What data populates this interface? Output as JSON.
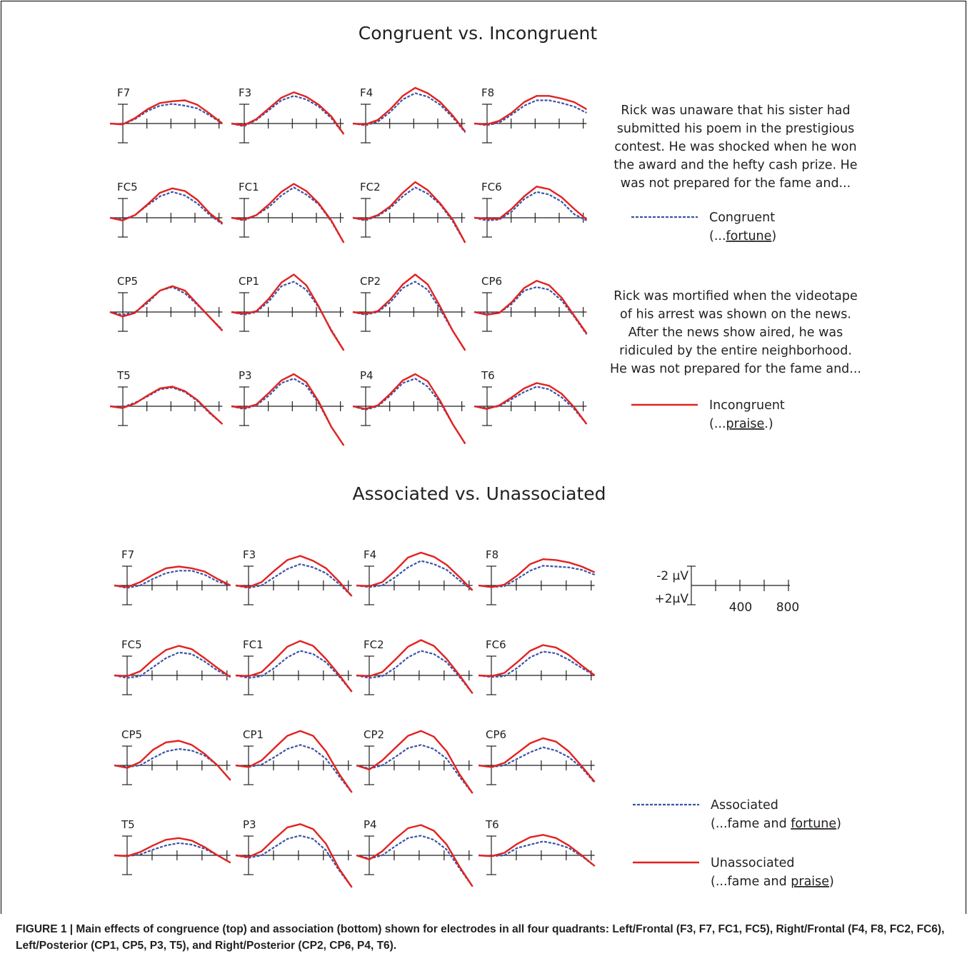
{
  "colors": {
    "congruent": "#3a55a5",
    "incongruent": "#e2221f",
    "axis": "#231f20"
  },
  "panels": [
    {
      "id": "congruence",
      "title": "Congruent vs. Incongruent",
      "electrode_rows": [
        [
          "F7",
          "F3",
          "F4",
          "F8"
        ],
        [
          "FC5",
          "FC1",
          "FC2",
          "FC6"
        ],
        [
          "CP5",
          "CP1",
          "CP2",
          "CP6"
        ],
        [
          "T5",
          "P3",
          "P4",
          "T6"
        ]
      ],
      "text_blocks": [
        [
          "Rick was unaware that his sister had",
          "submitted his poem in the prestigious",
          "contest.  He was shocked when he won",
          "the award and the hefty cash prize.  He",
          "was not prepared for the fame and..."
        ],
        [
          "Rick was mortified when the videotape",
          "of his arrest was shown on the news.",
          "After the news show aired, he was",
          "ridiculed by the entire neighborhood.",
          "He was not prepared for the fame and..."
        ]
      ],
      "legend": [
        {
          "style": "dashed",
          "label": "Congruent",
          "sub_prefix": "(...",
          "sub_underlined": "fortune",
          "sub_suffix": ")"
        },
        {
          "style": "solid",
          "label": "Incongruent",
          "sub_prefix": "(...",
          "sub_underlined": "praise",
          "sub_suffix": ".)"
        }
      ]
    },
    {
      "id": "association",
      "title": "Associated vs. Unassociated",
      "electrode_rows": [
        [
          "F7",
          "F3",
          "F4",
          "F8"
        ],
        [
          "FC5",
          "FC1",
          "FC2",
          "FC6"
        ],
        [
          "CP5",
          "CP1",
          "CP2",
          "CP6"
        ],
        [
          "T5",
          "P3",
          "P4",
          "T6"
        ]
      ],
      "scale": {
        "top": "-2 μV",
        "bottom": "+2μV",
        "ticks": [
          "400",
          "800"
        ]
      },
      "legend": [
        {
          "style": "dashed",
          "label": "Associated",
          "sub_prefix": "(...fame and ",
          "sub_underlined": "fortune",
          "sub_suffix": ")"
        },
        {
          "style": "solid",
          "label": "Unassociated",
          "sub_prefix": "(...fame and ",
          "sub_underlined": "praise",
          "sub_suffix": ")"
        }
      ]
    }
  ],
  "caption": "FIGURE 1 | Main effects of congruence (top) and association (bottom) shown for electrodes in all four quadrants: Left/Frontal (F3, F7, FC1, FC5), Right/Frontal (F4, F8, FC2, FC6), Left/Posterior (CP1, CP5, P3, T5), and Right/Posterior (CP2, CP6, P4, T6).",
  "chart_data": {
    "type": "line",
    "x": [
      -100,
      0,
      100,
      200,
      300,
      400,
      500,
      600,
      700,
      800
    ],
    "ylabel": "-2 μV / +2μV",
    "y_scale_note": "negative plotted up",
    "panels": [
      {
        "title": "Congruent vs. Incongruent",
        "electrodes": {
          "F7": {
            "Congruent": [
              0,
              0.1,
              -0.5,
              -1.4,
              -2.0,
              -2.2,
              -2.0,
              -1.7,
              -0.9,
              0.0
            ],
            "Incongruent": [
              0,
              0.1,
              -0.6,
              -1.6,
              -2.3,
              -2.5,
              -2.6,
              -2.1,
              -1.1,
              0.0
            ]
          },
          "F3": {
            "Congruent": [
              0,
              0.3,
              -0.4,
              -1.5,
              -2.6,
              -3.1,
              -2.7,
              -1.9,
              -0.6,
              1.2
            ],
            "Incongruent": [
              0,
              0.2,
              -0.5,
              -1.7,
              -2.9,
              -3.5,
              -3.0,
              -2.1,
              -0.8,
              1.2
            ]
          },
          "F4": {
            "Congruent": [
              0,
              0.2,
              -0.2,
              -1.3,
              -2.7,
              -3.4,
              -3.0,
              -2.1,
              -0.7,
              1.0
            ],
            "Incongruent": [
              0,
              0.1,
              -0.4,
              -1.6,
              -3.1,
              -4.0,
              -3.4,
              -2.4,
              -0.9,
              0.9
            ]
          },
          "F8": {
            "Congruent": [
              0,
              0.2,
              -0.1,
              -1.0,
              -2.0,
              -2.6,
              -2.6,
              -2.3,
              -1.9,
              -1.2
            ],
            "Incongruent": [
              0,
              0.1,
              -0.3,
              -1.2,
              -2.4,
              -3.1,
              -3.1,
              -2.8,
              -2.4,
              -1.6
            ]
          },
          "FC5": {
            "Congruent": [
              0,
              0.2,
              -0.3,
              -1.4,
              -2.4,
              -2.9,
              -2.5,
              -1.6,
              -0.3,
              0.7
            ],
            "Incongruent": [
              0,
              0.3,
              -0.3,
              -1.5,
              -2.8,
              -3.3,
              -3.0,
              -2.0,
              -0.5,
              0.6
            ]
          },
          "FC1": {
            "Congruent": [
              0,
              0.3,
              -0.3,
              -1.2,
              -2.5,
              -3.4,
              -2.6,
              -1.5,
              0.4,
              2.8
            ],
            "Incongruent": [
              0,
              0.2,
              -0.3,
              -1.5,
              -2.9,
              -3.8,
              -3.0,
              -1.6,
              0.3,
              2.8
            ]
          },
          "FC2": {
            "Congruent": [
              0,
              0.3,
              -0.2,
              -1.1,
              -2.4,
              -3.4,
              -2.7,
              -1.5,
              0.4,
              2.8
            ],
            "Incongruent": [
              0,
              0.2,
              -0.3,
              -1.3,
              -2.8,
              -4.0,
              -3.1,
              -1.6,
              0.2,
              2.8
            ]
          },
          "FC6": {
            "Congruent": [
              0,
              0.3,
              0.2,
              -0.7,
              -2.1,
              -2.9,
              -2.6,
              -1.8,
              -0.4,
              0.3
            ],
            "Incongruent": [
              0,
              0.1,
              0.1,
              -1.0,
              -2.4,
              -3.5,
              -3.2,
              -2.3,
              -1.0,
              0.2
            ]
          },
          "CP5": {
            "Congruent": [
              0,
              0.3,
              0.0,
              -1.0,
              -2.4,
              -2.8,
              -2.1,
              -0.8,
              0.6,
              2.0
            ],
            "Incongruent": [
              0,
              0.5,
              0.1,
              -1.2,
              -2.4,
              -2.9,
              -2.4,
              -0.9,
              0.6,
              2.1
            ]
          },
          "CP1": {
            "Congruent": [
              0,
              0.3,
              0.0,
              -1.2,
              -2.9,
              -3.4,
              -2.5,
              -0.5,
              2.0,
              4.3
            ],
            "Incongruent": [
              0,
              0.2,
              -0.1,
              -1.5,
              -3.3,
              -4.2,
              -3.0,
              -0.6,
              2.1,
              4.3
            ]
          },
          "CP2": {
            "Congruent": [
              0,
              0.3,
              0.0,
              -1.1,
              -2.7,
              -3.4,
              -2.5,
              -0.3,
              2.1,
              4.3
            ],
            "Incongruent": [
              0,
              0.2,
              -0.1,
              -1.4,
              -3.1,
              -4.2,
              -3.1,
              -0.6,
              2.1,
              4.3
            ]
          },
          "CP6": {
            "Congruent": [
              0,
              0.2,
              0.1,
              -0.9,
              -2.4,
              -2.8,
              -2.5,
              -1.3,
              0.5,
              2.5
            ],
            "Incongruent": [
              0,
              0.3,
              0.1,
              -1.1,
              -2.7,
              -3.5,
              -3.0,
              -1.6,
              0.4,
              2.4
            ]
          },
          "T5": {
            "Congruent": [
              0,
              0.1,
              -0.4,
              -1.1,
              -1.9,
              -2.1,
              -1.6,
              -0.6,
              0.8,
              2.0
            ],
            "Incongruent": [
              0,
              0.2,
              -0.3,
              -1.2,
              -2.0,
              -2.2,
              -1.7,
              -0.7,
              0.7,
              2.0
            ]
          },
          "P3": {
            "Congruent": [
              0,
              0.3,
              -0.1,
              -1.2,
              -2.6,
              -3.1,
              -2.3,
              -0.3,
              2.3,
              4.4
            ],
            "Incongruent": [
              0,
              0.2,
              -0.2,
              -1.5,
              -2.9,
              -3.6,
              -2.7,
              -0.5,
              2.3,
              4.4
            ]
          },
          "P4": {
            "Congruent": [
              0,
              0.4,
              0.0,
              -1.2,
              -2.6,
              -3.1,
              -2.2,
              -0.4,
              2.0,
              4.2
            ],
            "Incongruent": [
              0,
              0.3,
              -0.1,
              -1.4,
              -2.9,
              -3.6,
              -2.8,
              -0.6,
              2.0,
              4.2
            ]
          },
          "T6": {
            "Congruent": [
              0,
              0.2,
              0.0,
              -0.8,
              -1.6,
              -2.2,
              -1.9,
              -1.0,
              0.3,
              2.0
            ],
            "Incongruent": [
              0,
              0.3,
              -0.1,
              -1.0,
              -2.0,
              -2.6,
              -2.3,
              -1.4,
              0.1,
              2.0
            ]
          }
        }
      },
      {
        "title": "Associated vs. Unassociated",
        "electrodes": {
          "F7": {
            "Associated": [
              0,
              0.3,
              0.0,
              -0.8,
              -1.5,
              -1.8,
              -1.8,
              -1.3,
              -0.5,
              0.0
            ],
            "Unassociated": [
              0,
              0.2,
              -0.4,
              -1.3,
              -2.1,
              -2.3,
              -2.1,
              -1.7,
              -0.8,
              0.0
            ]
          },
          "F3": {
            "Associated": [
              0,
              0.3,
              0.0,
              -1.0,
              -2.0,
              -2.6,
              -2.2,
              -1.5,
              -0.2,
              1.3
            ],
            "Unassociated": [
              0,
              0.2,
              -0.4,
              -1.8,
              -3.1,
              -3.6,
              -3.0,
              -2.1,
              -0.5,
              1.3
            ]
          },
          "F4": {
            "Associated": [
              0,
              0.2,
              0.0,
              -1.0,
              -2.2,
              -3.0,
              -2.6,
              -1.9,
              -0.6,
              0.6
            ],
            "Unassociated": [
              0,
              0.1,
              -0.4,
              -1.8,
              -3.4,
              -4.0,
              -3.5,
              -2.5,
              -1.0,
              0.6
            ]
          },
          "F8": {
            "Associated": [
              0,
              0.2,
              0.1,
              -0.8,
              -1.8,
              -2.4,
              -2.3,
              -2.2,
              -1.9,
              -1.3
            ],
            "Unassociated": [
              0,
              0.2,
              -0.1,
              -1.2,
              -2.6,
              -3.2,
              -3.1,
              -2.8,
              -2.3,
              -1.6
            ]
          },
          "FC5": {
            "Associated": [
              0,
              0.3,
              0.1,
              -1.0,
              -2.1,
              -2.8,
              -2.6,
              -1.7,
              -0.6,
              0.2
            ],
            "Unassociated": [
              0,
              0.1,
              -0.5,
              -1.9,
              -3.1,
              -3.6,
              -3.2,
              -2.1,
              -0.9,
              0.2
            ]
          },
          "FC1": {
            "Associated": [
              0,
              0.3,
              0.1,
              -0.9,
              -2.2,
              -3.0,
              -2.6,
              -1.6,
              0.1,
              2.0
            ],
            "Unassociated": [
              0,
              0.1,
              -0.4,
              -1.9,
              -3.5,
              -4.2,
              -3.6,
              -2.0,
              -0.1,
              2.0
            ]
          },
          "FC2": {
            "Associated": [
              0,
              0.3,
              0.1,
              -0.9,
              -2.2,
              -3.0,
              -2.6,
              -1.6,
              0.2,
              2.2
            ],
            "Unassociated": [
              0,
              0.1,
              -0.4,
              -1.9,
              -3.5,
              -4.3,
              -3.6,
              -2.0,
              0.0,
              2.2
            ]
          },
          "FC6": {
            "Associated": [
              0,
              0.2,
              0.1,
              -0.9,
              -2.2,
              -2.9,
              -2.7,
              -1.9,
              -0.9,
              0.0
            ],
            "Unassociated": [
              0,
              0.1,
              -0.3,
              -1.6,
              -3.0,
              -3.7,
              -3.4,
              -2.5,
              -1.2,
              0.0
            ]
          },
          "CP5": {
            "Associated": [
              0,
              0.2,
              0.0,
              -0.9,
              -1.7,
              -2.0,
              -1.8,
              -1.2,
              0.0,
              1.8
            ],
            "Unassociated": [
              0,
              0.3,
              -0.4,
              -1.9,
              -2.8,
              -3.0,
              -2.5,
              -1.4,
              0.0,
              1.8
            ]
          },
          "CP1": {
            "Associated": [
              0,
              0.2,
              -0.1,
              -1.0,
              -2.0,
              -2.5,
              -2.0,
              -0.8,
              1.3,
              3.3
            ],
            "Unassociated": [
              0,
              0.2,
              -0.6,
              -2.1,
              -3.6,
              -4.2,
              -3.6,
              -1.7,
              1.0,
              3.3
            ]
          },
          "CP2": {
            "Associated": [
              0,
              0.4,
              0.0,
              -1.0,
              -2.1,
              -2.5,
              -2.0,
              -0.8,
              1.4,
              3.4
            ],
            "Unassociated": [
              0,
              0.5,
              -0.6,
              -2.1,
              -3.6,
              -4.2,
              -3.5,
              -1.7,
              1.1,
              3.4
            ]
          },
          "CP6": {
            "Associated": [
              0,
              0.2,
              0.0,
              -0.8,
              -1.6,
              -2.2,
              -1.8,
              -1.0,
              0.3,
              2.1
            ],
            "Unassociated": [
              0,
              0.2,
              -0.3,
              -1.5,
              -2.7,
              -3.3,
              -2.9,
              -1.7,
              0.1,
              2.0
            ]
          },
          "T5": {
            "Associated": [
              0,
              0.1,
              -0.1,
              -0.7,
              -1.2,
              -1.5,
              -1.3,
              -0.8,
              0.0,
              0.9
            ],
            "Unassociated": [
              0,
              0.1,
              -0.4,
              -1.2,
              -1.9,
              -2.1,
              -1.8,
              -1.0,
              0.0,
              0.9
            ]
          },
          "P3": {
            "Associated": [
              0,
              0.3,
              0.0,
              -1.0,
              -2.0,
              -2.4,
              -2.0,
              -0.6,
              1.8,
              3.9
            ],
            "Unassociated": [
              0,
              0.2,
              -0.5,
              -2.0,
              -3.4,
              -3.8,
              -3.2,
              -1.4,
              1.6,
              3.9
            ]
          },
          "P4": {
            "Associated": [
              0,
              0.4,
              0.0,
              -1.1,
              -2.1,
              -2.4,
              -1.9,
              -0.7,
              1.6,
              3.8
            ],
            "Unassociated": [
              0,
              0.5,
              -0.5,
              -2.0,
              -3.3,
              -3.7,
              -3.0,
              -1.3,
              1.4,
              3.8
            ]
          },
          "T6": {
            "Associated": [
              0,
              0.1,
              0.0,
              -0.9,
              -1.3,
              -1.7,
              -1.4,
              -0.9,
              0.1,
              1.3
            ],
            "Unassociated": [
              0,
              0.1,
              -0.3,
              -1.4,
              -2.2,
              -2.5,
              -2.1,
              -1.2,
              0.0,
              1.3
            ]
          }
        }
      }
    ]
  }
}
